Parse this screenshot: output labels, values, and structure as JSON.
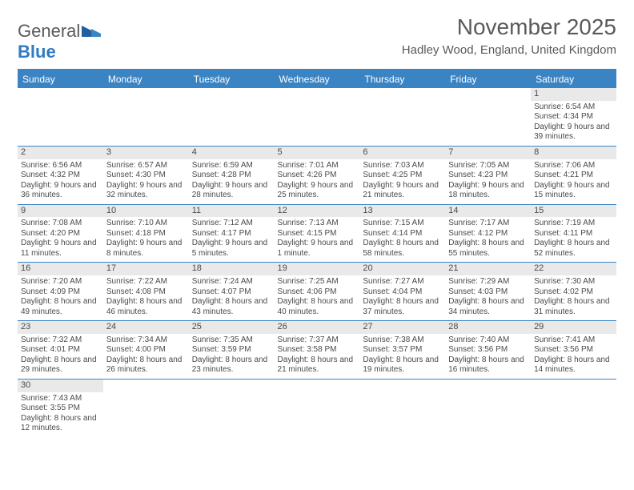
{
  "brand": {
    "part1": "General",
    "part2": "Blue"
  },
  "title": "November 2025",
  "location": "Hadley Wood, England, United Kingdom",
  "colors": {
    "header_bg": "#3b84c4",
    "header_text": "#ffffff",
    "daynum_bg": "#e9e9e9",
    "text": "#4a4a4a",
    "row_border": "#3b84c4",
    "brand_gray": "#5a5a5a",
    "brand_blue": "#2f7bc4"
  },
  "fonts": {
    "title_size": 28,
    "location_size": 15,
    "th_size": 12,
    "cell_size": 10
  },
  "days_of_week": [
    "Sunday",
    "Monday",
    "Tuesday",
    "Wednesday",
    "Thursday",
    "Friday",
    "Saturday"
  ],
  "weeks": [
    [
      null,
      null,
      null,
      null,
      null,
      null,
      {
        "n": "1",
        "sr": "6:54 AM",
        "ss": "4:34 PM",
        "dl": "9 hours and 39 minutes."
      }
    ],
    [
      {
        "n": "2",
        "sr": "6:56 AM",
        "ss": "4:32 PM",
        "dl": "9 hours and 36 minutes."
      },
      {
        "n": "3",
        "sr": "6:57 AM",
        "ss": "4:30 PM",
        "dl": "9 hours and 32 minutes."
      },
      {
        "n": "4",
        "sr": "6:59 AM",
        "ss": "4:28 PM",
        "dl": "9 hours and 28 minutes."
      },
      {
        "n": "5",
        "sr": "7:01 AM",
        "ss": "4:26 PM",
        "dl": "9 hours and 25 minutes."
      },
      {
        "n": "6",
        "sr": "7:03 AM",
        "ss": "4:25 PM",
        "dl": "9 hours and 21 minutes."
      },
      {
        "n": "7",
        "sr": "7:05 AM",
        "ss": "4:23 PM",
        "dl": "9 hours and 18 minutes."
      },
      {
        "n": "8",
        "sr": "7:06 AM",
        "ss": "4:21 PM",
        "dl": "9 hours and 15 minutes."
      }
    ],
    [
      {
        "n": "9",
        "sr": "7:08 AM",
        "ss": "4:20 PM",
        "dl": "9 hours and 11 minutes."
      },
      {
        "n": "10",
        "sr": "7:10 AM",
        "ss": "4:18 PM",
        "dl": "9 hours and 8 minutes."
      },
      {
        "n": "11",
        "sr": "7:12 AM",
        "ss": "4:17 PM",
        "dl": "9 hours and 5 minutes."
      },
      {
        "n": "12",
        "sr": "7:13 AM",
        "ss": "4:15 PM",
        "dl": "9 hours and 1 minute."
      },
      {
        "n": "13",
        "sr": "7:15 AM",
        "ss": "4:14 PM",
        "dl": "8 hours and 58 minutes."
      },
      {
        "n": "14",
        "sr": "7:17 AM",
        "ss": "4:12 PM",
        "dl": "8 hours and 55 minutes."
      },
      {
        "n": "15",
        "sr": "7:19 AM",
        "ss": "4:11 PM",
        "dl": "8 hours and 52 minutes."
      }
    ],
    [
      {
        "n": "16",
        "sr": "7:20 AM",
        "ss": "4:09 PM",
        "dl": "8 hours and 49 minutes."
      },
      {
        "n": "17",
        "sr": "7:22 AM",
        "ss": "4:08 PM",
        "dl": "8 hours and 46 minutes."
      },
      {
        "n": "18",
        "sr": "7:24 AM",
        "ss": "4:07 PM",
        "dl": "8 hours and 43 minutes."
      },
      {
        "n": "19",
        "sr": "7:25 AM",
        "ss": "4:06 PM",
        "dl": "8 hours and 40 minutes."
      },
      {
        "n": "20",
        "sr": "7:27 AM",
        "ss": "4:04 PM",
        "dl": "8 hours and 37 minutes."
      },
      {
        "n": "21",
        "sr": "7:29 AM",
        "ss": "4:03 PM",
        "dl": "8 hours and 34 minutes."
      },
      {
        "n": "22",
        "sr": "7:30 AM",
        "ss": "4:02 PM",
        "dl": "8 hours and 31 minutes."
      }
    ],
    [
      {
        "n": "23",
        "sr": "7:32 AM",
        "ss": "4:01 PM",
        "dl": "8 hours and 29 minutes."
      },
      {
        "n": "24",
        "sr": "7:34 AM",
        "ss": "4:00 PM",
        "dl": "8 hours and 26 minutes."
      },
      {
        "n": "25",
        "sr": "7:35 AM",
        "ss": "3:59 PM",
        "dl": "8 hours and 23 minutes."
      },
      {
        "n": "26",
        "sr": "7:37 AM",
        "ss": "3:58 PM",
        "dl": "8 hours and 21 minutes."
      },
      {
        "n": "27",
        "sr": "7:38 AM",
        "ss": "3:57 PM",
        "dl": "8 hours and 19 minutes."
      },
      {
        "n": "28",
        "sr": "7:40 AM",
        "ss": "3:56 PM",
        "dl": "8 hours and 16 minutes."
      },
      {
        "n": "29",
        "sr": "7:41 AM",
        "ss": "3:56 PM",
        "dl": "8 hours and 14 minutes."
      }
    ],
    [
      {
        "n": "30",
        "sr": "7:43 AM",
        "ss": "3:55 PM",
        "dl": "8 hours and 12 minutes."
      },
      null,
      null,
      null,
      null,
      null,
      null
    ]
  ],
  "labels": {
    "sunrise": "Sunrise:",
    "sunset": "Sunset:",
    "daylight": "Daylight:"
  }
}
